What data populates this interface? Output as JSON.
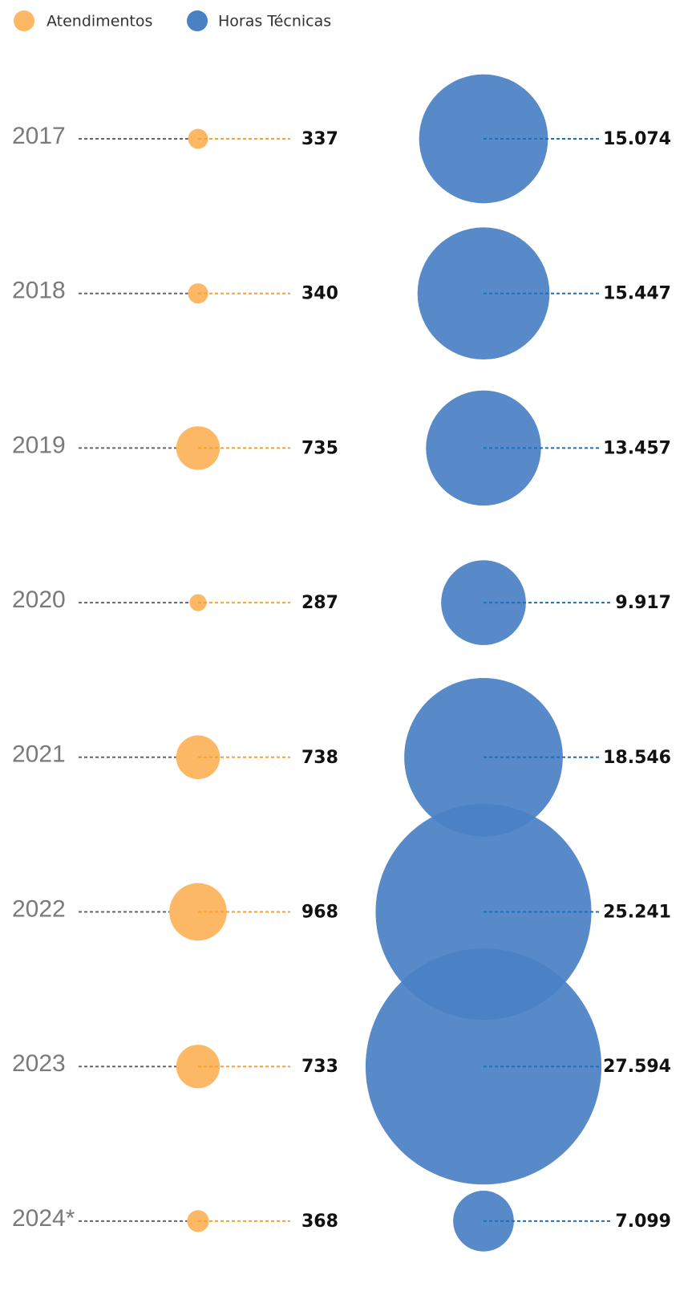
{
  "chart_data": {
    "type": "bubble",
    "categories": [
      "2017",
      "2018",
      "2019",
      "2020",
      "2021",
      "2022",
      "2023",
      "2024*"
    ],
    "series": [
      {
        "name": "Atendimentos",
        "color": "#fdb865",
        "values": [
          337,
          340,
          735,
          287,
          738,
          968,
          733,
          368
        ]
      },
      {
        "name": "Horas Técnicas",
        "color": "#4a80c4",
        "values": [
          15074,
          15447,
          13457,
          9917,
          18546,
          25241,
          27594,
          7099
        ],
        "value_labels": [
          "15.074",
          "15.447",
          "13.457",
          "9.917",
          "18.546",
          "25.241",
          "27.594",
          "7.099"
        ]
      }
    ]
  }
}
